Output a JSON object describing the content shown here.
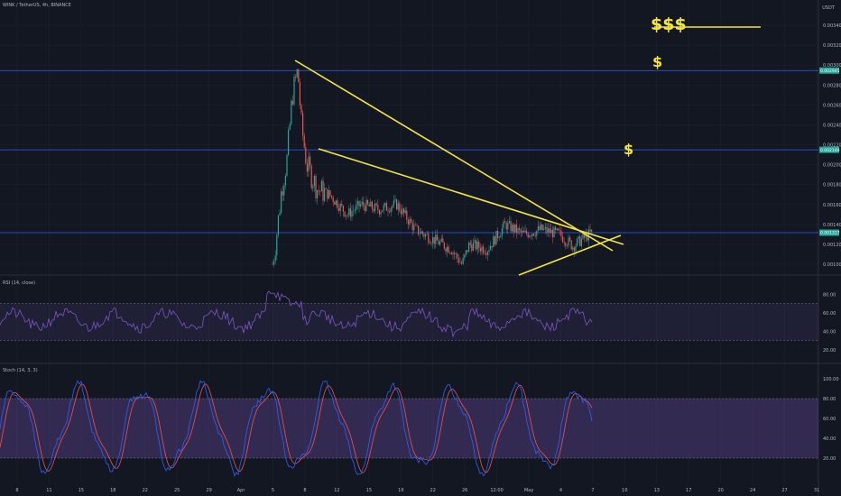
{
  "header": {
    "title": "WINK / TetherUS, 4h, BINANCE"
  },
  "price_axis": {
    "currency": "USDT",
    "ticks": [
      "0.003400",
      "0.003200",
      "0.003000",
      "0.002800",
      "0.002600",
      "0.002400",
      "0.002200",
      "0.002000",
      "0.001800",
      "0.001600",
      "0.001400",
      "0.001200",
      "0.001000"
    ],
    "level_badges": [
      "0.002945",
      "0.002149",
      "0.001317"
    ]
  },
  "rsi": {
    "label": "RSI (14, close)",
    "ticks": [
      "80.00",
      "60.00",
      "40.00",
      "20.00"
    ]
  },
  "stoch": {
    "label": "Stoch (14, 3, 3)",
    "ticks": [
      "100.00",
      "80.00",
      "60.00",
      "40.00",
      "20.00"
    ]
  },
  "time_axis": {
    "labels": [
      "8",
      "11",
      "15",
      "18",
      "22",
      "25",
      "29",
      "Apr",
      "5",
      "8",
      "12",
      "15",
      "19",
      "22",
      "26",
      "12:00",
      "May",
      "4",
      "7",
      "10",
      "13",
      "17",
      "20",
      "24",
      "27",
      "31"
    ]
  },
  "annotations": {
    "target_big": "$$$",
    "target_mid": "$",
    "target_small": "$"
  },
  "colors": {
    "up": "#26a69a",
    "down": "#ef5350",
    "trendline": "#f5e63c",
    "level": "#2962ff",
    "rsi": "#7e57c2",
    "stoch_k": "#2962ff",
    "stoch_d": "#ef5350"
  }
}
